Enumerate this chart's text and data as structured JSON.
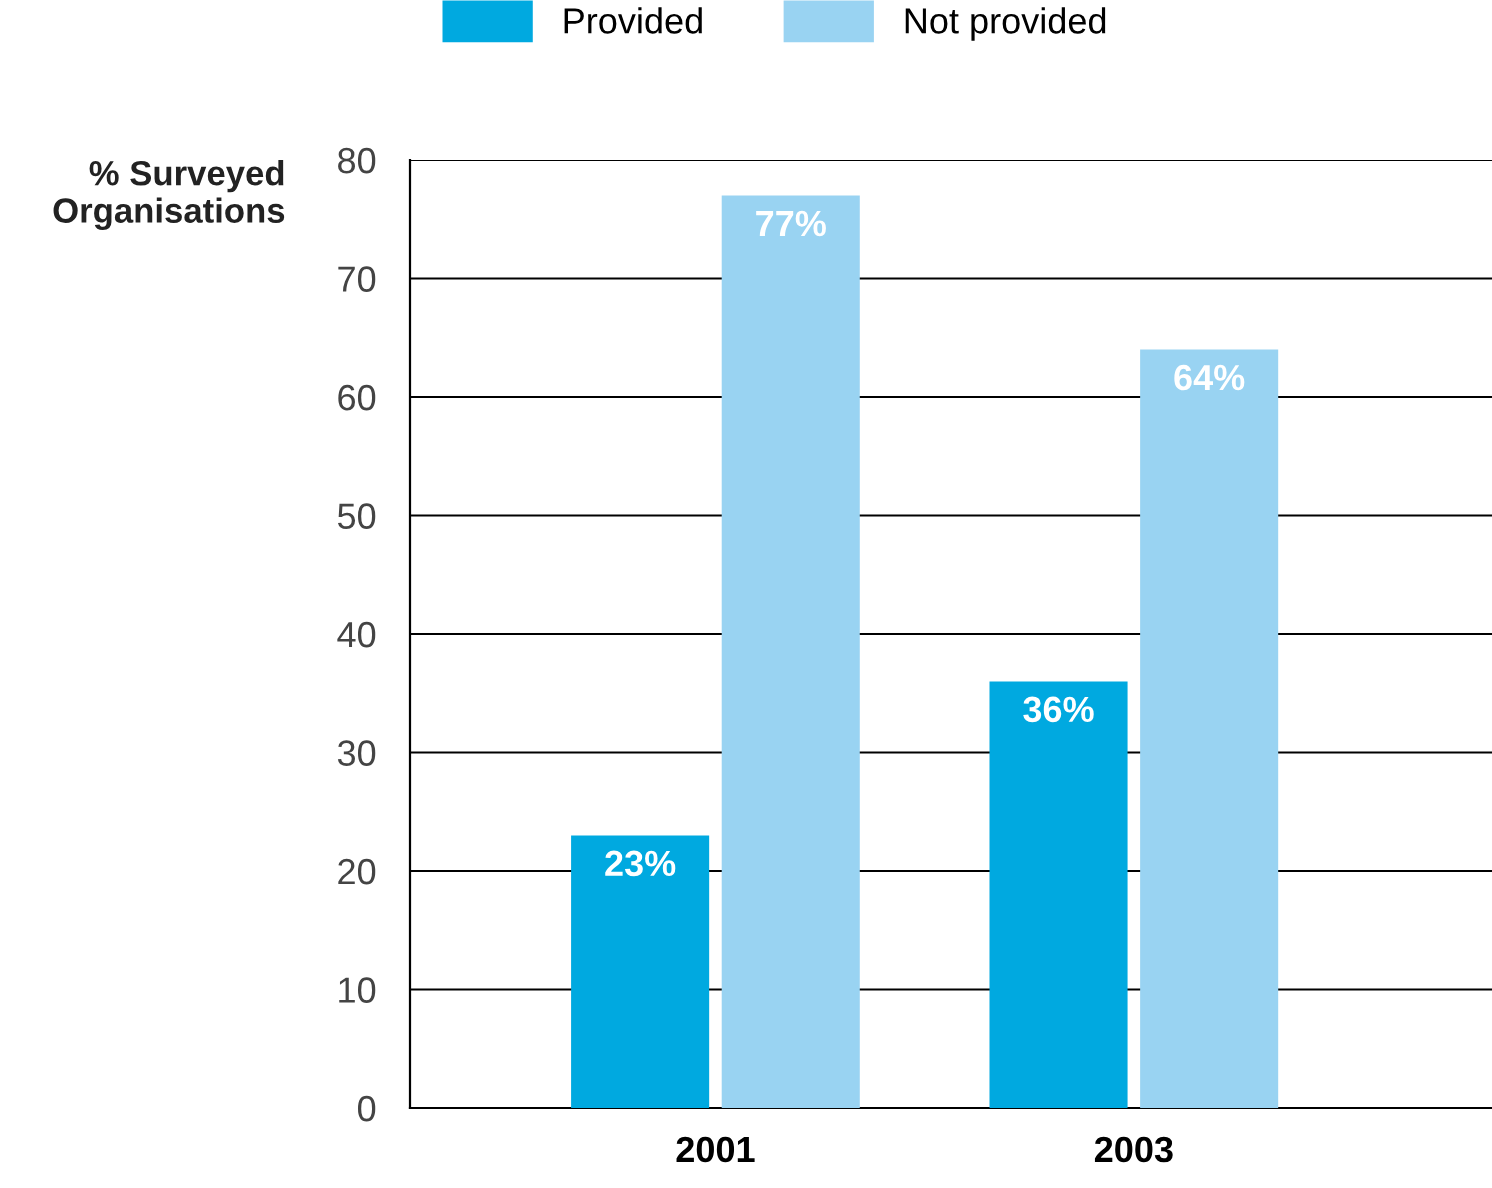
{
  "chart_data": {
    "type": "bar",
    "ylabel": "% Surveyed\nOrganisations",
    "categories": [
      "2001",
      "2003"
    ],
    "series": [
      {
        "name": "Provided",
        "color": "#00a9e0",
        "values": [
          23,
          36
        ],
        "value_labels": [
          "23%",
          "36%"
        ]
      },
      {
        "name": "Not provided",
        "color": "#99d3f2",
        "values": [
          77,
          64
        ],
        "value_labels": [
          "77%",
          "64%"
        ]
      }
    ],
    "ylim": [
      0,
      80
    ],
    "yticks": [
      0,
      10,
      20,
      30,
      40,
      50,
      60,
      70,
      80
    ],
    "grid": "y",
    "legend": "top"
  }
}
